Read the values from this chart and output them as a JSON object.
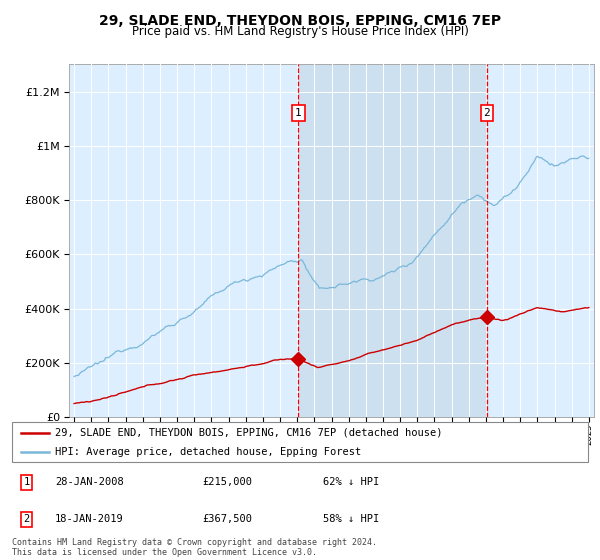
{
  "title": "29, SLADE END, THEYDON BOIS, EPPING, CM16 7EP",
  "subtitle": "Price paid vs. HM Land Registry's House Price Index (HPI)",
  "ytick_values": [
    0,
    200000,
    400000,
    600000,
    800000,
    1000000,
    1200000
  ],
  "ylim": [
    0,
    1300000
  ],
  "x_start_year": 1995,
  "x_end_year": 2025,
  "sale1_date": "28-JAN-2008",
  "sale1_price": 215000,
  "sale1_x": 2008.07,
  "sale2_date": "18-JAN-2019",
  "sale2_price": 367500,
  "sale2_x": 2019.05,
  "legend_line1": "29, SLADE END, THEYDON BOIS, EPPING, CM16 7EP (detached house)",
  "legend_line2": "HPI: Average price, detached house, Epping Forest",
  "footer": "Contains HM Land Registry data © Crown copyright and database right 2024.\nThis data is licensed under the Open Government Licence v3.0.",
  "hpi_color": "#7ab8d9",
  "sale_color": "#cc0000",
  "bg_color": "#ddeeff",
  "shade_color": "#cce0f0",
  "table_row1": [
    "1",
    "28-JAN-2008",
    "£215,000",
    "62% ↓ HPI"
  ],
  "table_row2": [
    "2",
    "18-JAN-2019",
    "£367,500",
    "58% ↓ HPI"
  ]
}
